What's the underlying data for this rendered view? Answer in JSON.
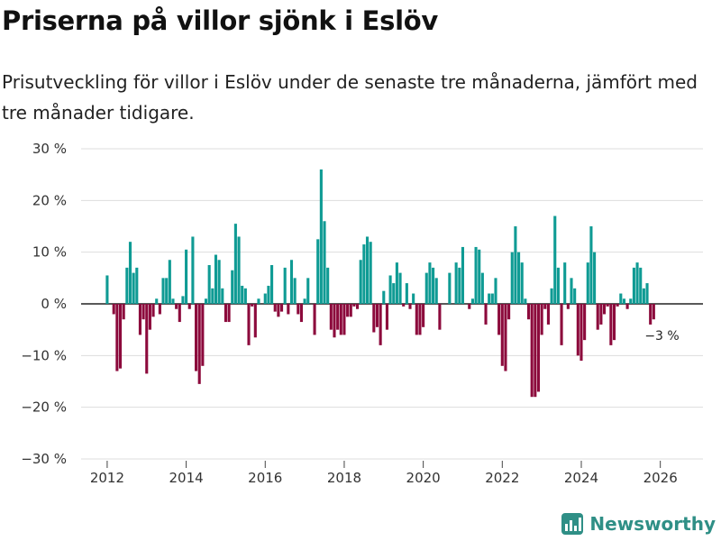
{
  "colors": {
    "positive": "#0f9b94",
    "negative": "#8c0a3c",
    "grid": "#dddddd",
    "brand": "#2f8f86"
  },
  "chart_data": {
    "type": "bar",
    "title": "Priserna på villor sjönk i Eslöv",
    "subtitle": "Prisutveckling för villor i Eslöv under de senaste tre månaderna, jämfört med tre månader tidigare.",
    "ylabel": "",
    "xlabel": "",
    "ylim": [
      -30,
      30
    ],
    "y_ticks": [
      30,
      20,
      10,
      0,
      -10,
      -20,
      -30
    ],
    "y_tick_labels": [
      "30 %",
      "20 %",
      "10 %",
      "0 %",
      "−10 %",
      "−20 %",
      "−30 %"
    ],
    "x_ticks": [
      2012,
      2014,
      2016,
      2018,
      2020,
      2022,
      2024,
      2026
    ],
    "x_tick_labels": [
      "2012",
      "2014",
      "2016",
      "2018",
      "2020",
      "2022",
      "2024",
      "2026"
    ],
    "x_start": 2012.0,
    "step_years": 0.08333,
    "values": [
      5.5,
      0,
      -2,
      -13,
      -12.5,
      -3,
      7,
      12,
      6,
      7,
      -6,
      -3,
      -13.5,
      -5,
      -2.5,
      1,
      -2,
      5,
      5,
      8.5,
      1,
      -1,
      -3.5,
      1.5,
      10.5,
      -1,
      13,
      -13,
      -15.5,
      -12,
      1,
      7.5,
      3,
      9.5,
      8.5,
      3,
      -3.5,
      -3.5,
      6.5,
      15.5,
      13,
      3.5,
      3,
      -8,
      -0.5,
      -6.5,
      1,
      0,
      2,
      3.5,
      7.5,
      -1.5,
      -2.5,
      -1.5,
      7,
      -2,
      8.5,
      5,
      -2,
      -3.5,
      1,
      5,
      0,
      -6,
      12.5,
      26,
      16,
      7,
      -5,
      -6.5,
      -5,
      -6,
      -6,
      -2.5,
      -2.5,
      -0.5,
      -1,
      8.5,
      11.5,
      13,
      12,
      -5.5,
      -4.5,
      -8,
      2.5,
      -5,
      5.5,
      4,
      8,
      6,
      -0.5,
      4,
      -1,
      2,
      -6,
      -6,
      -4.5,
      6,
      8,
      7,
      5,
      -5,
      0,
      0,
      6,
      0,
      8,
      7,
      11,
      0,
      -1,
      1,
      11,
      10.5,
      6,
      -4,
      2,
      2,
      5,
      -6,
      -12,
      -13,
      -3,
      10,
      15,
      10,
      8,
      1,
      -3,
      -18,
      -18,
      -17,
      -6,
      -1,
      -4,
      3,
      17,
      7,
      -8,
      8,
      -1,
      5,
      3,
      -10,
      -11,
      -7,
      8,
      15,
      10,
      -5,
      -4,
      -2,
      -0.5,
      -8,
      -7,
      -0.5,
      2,
      1,
      -1,
      1,
      7,
      8,
      7,
      3,
      4,
      -4,
      -3
    ],
    "last_value_label": "−3 %"
  },
  "brand": {
    "name": "Newsworthy",
    "logo_icon": "bar-chart-logo-icon"
  }
}
